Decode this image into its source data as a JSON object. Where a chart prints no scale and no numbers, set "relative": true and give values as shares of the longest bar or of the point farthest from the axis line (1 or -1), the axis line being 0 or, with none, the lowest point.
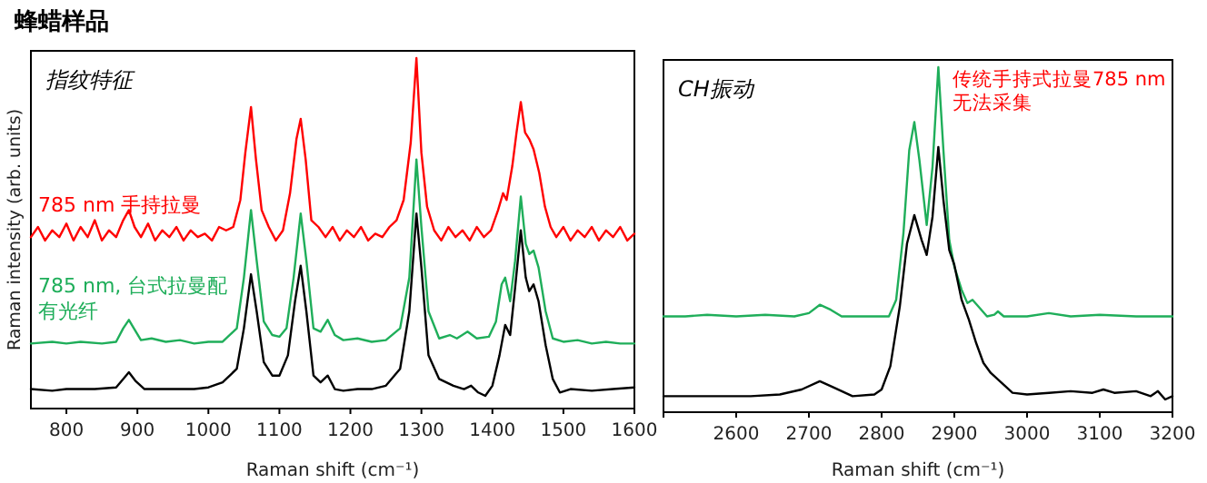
{
  "chart_data": [
    {
      "type": "line",
      "title": "蜂蜡样品",
      "subtitle": "指纹特征",
      "xlabel": "Raman shift (cm⁻¹)",
      "ylabel": "Raman intensity (arb. units)",
      "relative": true,
      "legend": false,
      "grid": false,
      "xlim": [
        750,
        1600
      ],
      "xticks": [
        800,
        900,
        1000,
        1100,
        1200,
        1300,
        1400,
        1500,
        1600
      ],
      "series": [
        {
          "name": "785 nm 手持拉曼",
          "color": "#ff0000",
          "x": [
            750,
            760,
            770,
            780,
            790,
            800,
            810,
            820,
            830,
            840,
            850,
            860,
            870,
            880,
            888,
            896,
            905,
            915,
            925,
            935,
            945,
            955,
            965,
            975,
            985,
            995,
            1005,
            1015,
            1025,
            1035,
            1045,
            1052,
            1060,
            1067,
            1075,
            1085,
            1095,
            1105,
            1115,
            1124,
            1130,
            1137,
            1145,
            1155,
            1165,
            1175,
            1185,
            1195,
            1205,
            1215,
            1225,
            1235,
            1245,
            1255,
            1265,
            1275,
            1285,
            1293,
            1300,
            1308,
            1318,
            1328,
            1338,
            1348,
            1358,
            1368,
            1378,
            1388,
            1398,
            1408,
            1415,
            1420,
            1428,
            1434,
            1440,
            1446,
            1452,
            1458,
            1466,
            1474,
            1482,
            1490,
            1500,
            1510,
            1520,
            1530,
            1540,
            1550,
            1560,
            1570,
            1580,
            1590,
            1600
          ],
          "values": [
            0.47,
            0.5,
            0.46,
            0.49,
            0.47,
            0.51,
            0.46,
            0.5,
            0.47,
            0.52,
            0.46,
            0.49,
            0.47,
            0.52,
            0.55,
            0.5,
            0.47,
            0.51,
            0.46,
            0.49,
            0.47,
            0.5,
            0.46,
            0.49,
            0.47,
            0.48,
            0.46,
            0.5,
            0.49,
            0.5,
            0.58,
            0.72,
            0.855,
            0.7,
            0.55,
            0.5,
            0.46,
            0.49,
            0.6,
            0.76,
            0.82,
            0.7,
            0.52,
            0.5,
            0.47,
            0.5,
            0.46,
            0.49,
            0.47,
            0.5,
            0.46,
            0.48,
            0.47,
            0.5,
            0.52,
            0.58,
            0.75,
            1,
            0.72,
            0.56,
            0.49,
            0.46,
            0.5,
            0.47,
            0.49,
            0.46,
            0.5,
            0.47,
            0.49,
            0.55,
            0.6,
            0.58,
            0.68,
            0.78,
            0.87,
            0.78,
            0.76,
            0.73,
            0.66,
            0.56,
            0.5,
            0.47,
            0.5,
            0.46,
            0.49,
            0.47,
            0.5,
            0.46,
            0.49,
            0.47,
            0.5,
            0.46,
            0.48
          ]
        },
        {
          "name": "785 nm, 台式拉曼配有光纤",
          "color": "#1fae5a",
          "x": [
            750,
            780,
            800,
            820,
            850,
            870,
            880,
            888,
            895,
            905,
            920,
            940,
            960,
            980,
            1000,
            1020,
            1040,
            1050,
            1060,
            1068,
            1078,
            1090,
            1100,
            1110,
            1120,
            1130,
            1138,
            1148,
            1158,
            1168,
            1178,
            1190,
            1210,
            1230,
            1250,
            1270,
            1283,
            1293,
            1300,
            1310,
            1325,
            1340,
            1350,
            1365,
            1378,
            1395,
            1405,
            1413,
            1418,
            1425,
            1432,
            1440,
            1447,
            1452,
            1458,
            1465,
            1475,
            1485,
            1500,
            1520,
            1540,
            1560,
            1580,
            1600
          ],
          "values": [
            0.155,
            0.16,
            0.155,
            0.16,
            0.155,
            0.16,
            0.2,
            0.225,
            0.2,
            0.165,
            0.17,
            0.16,
            0.165,
            0.155,
            0.16,
            0.16,
            0.2,
            0.35,
            0.55,
            0.4,
            0.22,
            0.18,
            0.175,
            0.2,
            0.35,
            0.54,
            0.4,
            0.2,
            0.19,
            0.225,
            0.18,
            0.165,
            0.17,
            0.16,
            0.165,
            0.2,
            0.35,
            0.7,
            0.5,
            0.25,
            0.17,
            0.18,
            0.17,
            0.19,
            0.17,
            0.175,
            0.22,
            0.33,
            0.35,
            0.28,
            0.4,
            0.59,
            0.45,
            0.42,
            0.43,
            0.38,
            0.25,
            0.17,
            0.16,
            0.165,
            0.155,
            0.16,
            0.155,
            0.155
          ]
        },
        {
          "color": "#000000",
          "x": [
            750,
            780,
            800,
            840,
            870,
            880,
            888,
            897,
            910,
            940,
            980,
            1000,
            1020,
            1040,
            1050,
            1060,
            1068,
            1078,
            1090,
            1100,
            1112,
            1122,
            1130,
            1138,
            1148,
            1158,
            1168,
            1178,
            1190,
            1210,
            1230,
            1250,
            1270,
            1283,
            1293,
            1300,
            1310,
            1325,
            1345,
            1360,
            1370,
            1380,
            1390,
            1400,
            1410,
            1418,
            1425,
            1432,
            1440,
            1447,
            1452,
            1458,
            1465,
            1475,
            1485,
            1495,
            1510,
            1540,
            1570,
            1600
          ],
          "values": [
            0.02,
            0.015,
            0.02,
            0.02,
            0.025,
            0.05,
            0.07,
            0.045,
            0.02,
            0.02,
            0.02,
            0.025,
            0.04,
            0.08,
            0.2,
            0.36,
            0.25,
            0.1,
            0.06,
            0.06,
            0.12,
            0.28,
            0.385,
            0.25,
            0.06,
            0.04,
            0.06,
            0.02,
            0.015,
            0.02,
            0.02,
            0.03,
            0.08,
            0.25,
            0.54,
            0.38,
            0.12,
            0.05,
            0.03,
            0.02,
            0.03,
            0.01,
            0,
            0.03,
            0.12,
            0.21,
            0.18,
            0.32,
            0.49,
            0.35,
            0.31,
            0.33,
            0.28,
            0.15,
            0.05,
            0.01,
            0.02,
            0.015,
            0.02,
            0.025
          ]
        }
      ]
    },
    {
      "type": "line",
      "subtitle": "CH振动",
      "xlabel": "Raman shift (cm⁻¹)",
      "relative": true,
      "legend": false,
      "grid": false,
      "xlim": [
        2500,
        3200
      ],
      "xticks": [
        {
          "value": 2500,
          "label": null
        },
        2600,
        2700,
        2800,
        2900,
        3000,
        3100,
        3200
      ],
      "annotations": [
        "传统手持式拉曼785 nm无法采集"
      ],
      "series": [
        {
          "color": "#1fae5a",
          "x": [
            2500,
            2530,
            2560,
            2600,
            2640,
            2680,
            2700,
            2715,
            2730,
            2745,
            2780,
            2810,
            2820,
            2830,
            2838,
            2845,
            2852,
            2862,
            2870,
            2878,
            2885,
            2893,
            2900,
            2910,
            2918,
            2925,
            2933,
            2945,
            2955,
            2960,
            2968,
            3000,
            3030,
            3060,
            3100,
            3150,
            3200
          ],
          "values": [
            0.25,
            0.25,
            0.255,
            0.25,
            0.255,
            0.25,
            0.26,
            0.285,
            0.27,
            0.25,
            0.25,
            0.25,
            0.3,
            0.5,
            0.75,
            0.835,
            0.72,
            0.525,
            0.7,
            1,
            0.75,
            0.48,
            0.4,
            0.33,
            0.29,
            0.3,
            0.28,
            0.25,
            0.255,
            0.265,
            0.25,
            0.25,
            0.26,
            0.25,
            0.255,
            0.25,
            0.25
          ]
        },
        {
          "color": "#000000",
          "x": [
            2500,
            2540,
            2580,
            2620,
            2660,
            2690,
            2715,
            2735,
            2760,
            2790,
            2800,
            2812,
            2825,
            2835,
            2845,
            2855,
            2862,
            2870,
            2878,
            2885,
            2893,
            2900,
            2910,
            2920,
            2930,
            2940,
            2950,
            2965,
            2980,
            3000,
            3030,
            3060,
            3090,
            3105,
            3120,
            3150,
            3170,
            3180,
            3190,
            3200
          ],
          "values": [
            0.01,
            0.01,
            0.01,
            0.01,
            0.015,
            0.03,
            0.055,
            0.035,
            0.01,
            0.015,
            0.03,
            0.1,
            0.28,
            0.47,
            0.555,
            0.48,
            0.435,
            0.55,
            0.76,
            0.6,
            0.45,
            0.405,
            0.3,
            0.24,
            0.17,
            0.11,
            0.08,
            0.05,
            0.02,
            0.015,
            0.02,
            0.025,
            0.02,
            0.03,
            0.02,
            0.025,
            0.01,
            0.025,
            0,
            0.01
          ]
        }
      ]
    }
  ]
}
